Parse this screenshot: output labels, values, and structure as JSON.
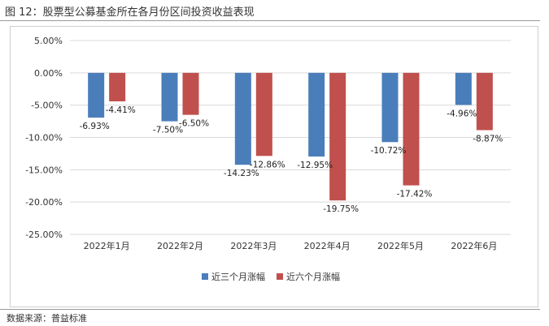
{
  "header": {
    "title": "图 12：股票型公募基金所在各月份区间投资收益表现"
  },
  "footer": {
    "source": "数据来源：普益标准"
  },
  "colors": {
    "series1": "#4a7ebb",
    "series2": "#c0504d",
    "grid": "#d9d9d9",
    "axis_text": "#333333"
  },
  "chart_data": {
    "type": "bar",
    "title": "股票型公募基金所在各月份区间投资收益表现",
    "xlabel": "",
    "ylabel": "",
    "categories": [
      "2022年1月",
      "2022年2月",
      "2022年3月",
      "2022年4月",
      "2022年5月",
      "2022年6月"
    ],
    "series": [
      {
        "name": "近三个月涨幅",
        "values": [
          -6.93,
          -7.5,
          -14.23,
          -12.95,
          -10.72,
          -4.96
        ],
        "labels": [
          "-6.93%",
          "-7.50%",
          "-14.23%",
          "-12.95%",
          "-10.72%",
          "-4.96%"
        ]
      },
      {
        "name": "近六个月涨幅",
        "values": [
          -4.41,
          -6.5,
          -12.86,
          -19.75,
          -17.42,
          -8.87
        ],
        "labels": [
          "-4.41%",
          "-6.50%",
          "-12.86%",
          "-19.75%",
          "-17.42%",
          "-8.87%"
        ]
      }
    ],
    "ylim": [
      -25,
      5
    ],
    "yticks": [
      5,
      0,
      -5,
      -10,
      -15,
      -20,
      -25
    ],
    "ytick_labels": [
      "5.00%",
      "0.00%",
      "-5.00%",
      "-10.00%",
      "-15.00%",
      "-20.00%",
      "-25.00%"
    ],
    "grid": true,
    "legend_position": "bottom"
  }
}
